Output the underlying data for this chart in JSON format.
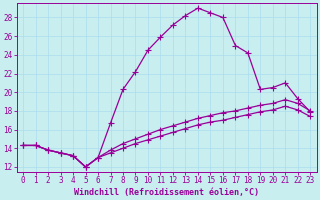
{
  "xlabel": "Windchill (Refroidissement éolien,°C)",
  "ylabel": "",
  "bg_color": "#c8eef0",
  "grid_color": "#aaddee",
  "line_color": "#990099",
  "marker": "+",
  "markersize": 4,
  "linewidth": 0.9,
  "xlim": [
    -0.5,
    23.5
  ],
  "ylim": [
    11.5,
    29.5
  ],
  "xticks": [
    0,
    1,
    2,
    3,
    4,
    5,
    6,
    7,
    8,
    9,
    10,
    11,
    12,
    13,
    14,
    15,
    16,
    17,
    18,
    19,
    20,
    21,
    22,
    23
  ],
  "yticks": [
    12,
    14,
    16,
    18,
    20,
    22,
    24,
    26,
    28
  ],
  "line1_x": [
    0,
    1,
    2,
    3,
    4,
    5,
    6,
    7,
    8,
    9,
    10,
    11,
    12,
    13,
    14,
    15,
    16,
    17,
    18,
    19,
    20,
    21,
    22,
    23
  ],
  "line1_y": [
    14.3,
    14.3,
    13.8,
    13.5,
    13.2,
    12.0,
    13.0,
    16.7,
    20.3,
    22.2,
    24.5,
    25.9,
    27.2,
    28.2,
    29.0,
    28.5,
    28.0,
    25.0,
    24.2,
    20.3,
    20.5,
    21.0,
    19.3,
    17.9
  ],
  "line2_x": [
    0,
    1,
    2,
    3,
    4,
    5,
    6,
    7,
    8,
    9,
    10,
    11,
    12,
    13,
    14,
    15,
    16,
    17,
    18,
    19,
    20,
    21,
    22,
    23
  ],
  "line2_y": [
    14.3,
    14.3,
    13.8,
    13.5,
    13.2,
    12.0,
    13.0,
    13.8,
    14.5,
    15.0,
    15.5,
    16.0,
    16.4,
    16.8,
    17.2,
    17.5,
    17.8,
    18.0,
    18.3,
    18.6,
    18.8,
    19.2,
    18.8,
    18.0
  ],
  "line3_x": [
    0,
    1,
    2,
    3,
    4,
    5,
    6,
    7,
    8,
    9,
    10,
    11,
    12,
    13,
    14,
    15,
    16,
    17,
    18,
    19,
    20,
    21,
    22,
    23
  ],
  "line3_y": [
    14.3,
    14.3,
    13.8,
    13.5,
    13.2,
    12.0,
    13.0,
    13.5,
    14.0,
    14.5,
    14.9,
    15.3,
    15.7,
    16.1,
    16.5,
    16.8,
    17.0,
    17.3,
    17.6,
    17.9,
    18.1,
    18.5,
    18.1,
    17.4
  ],
  "title_fontsize": 7,
  "xlabel_fontsize": 6,
  "tick_fontsize": 5.5
}
